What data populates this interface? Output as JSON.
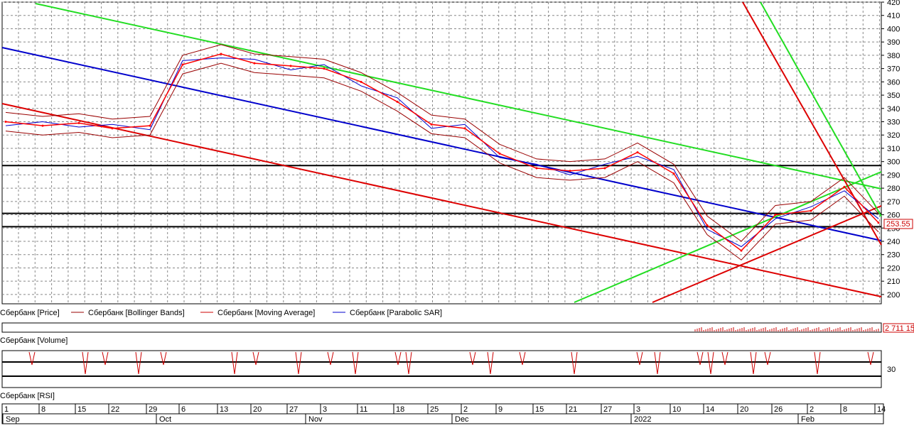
{
  "price_chart": {
    "y_ticks": [
      200,
      210,
      220,
      230,
      240,
      250,
      260,
      270,
      280,
      290,
      300,
      310,
      320,
      330,
      340,
      350,
      360,
      370,
      380,
      390,
      400,
      410,
      420
    ],
    "y_range": [
      193,
      420
    ],
    "last_price_label": "253.55",
    "horizontal_lines": [
      297,
      261,
      251
    ],
    "legend": [
      {
        "label": "Сбербанк [Price]",
        "color": "#ff0000"
      },
      {
        "label": "Сбербанк [Bollinger Bands]",
        "color": "#990000"
      },
      {
        "label": "Сбербанк [Moving Average]",
        "color": "#cc0000"
      },
      {
        "label": "Сбербанк [Parabolic SAR]",
        "color": "#0000cc"
      }
    ]
  },
  "volume_panel": {
    "label": "Сбербанк [Volume]",
    "value_label": "2 711 15"
  },
  "rsi_panel": {
    "label": "Сбербанк [RSI]",
    "level_label": "30"
  },
  "time_axis": {
    "day_labels": [
      "1",
      "8",
      "15",
      "22",
      "29",
      "6",
      "13",
      "20",
      "27",
      "3",
      "11",
      "18",
      "25",
      "2",
      "9",
      "15",
      "21",
      "27",
      "3",
      "10",
      "14",
      "20",
      "26",
      "2",
      "8",
      "14"
    ],
    "month_labels": [
      "Sep",
      "Oct",
      "Nov",
      "Dec",
      "2022",
      "Feb"
    ]
  },
  "chart_data": {
    "type": "line",
    "title": "",
    "x_dates": [
      "Sep 1",
      "Sep 8",
      "Sep 15",
      "Sep 22",
      "Sep 29",
      "Oct 6",
      "Oct 13",
      "Oct 20",
      "Oct 27",
      "Nov 3",
      "Nov 11",
      "Nov 18",
      "Nov 25",
      "Dec 2",
      "Dec 9",
      "Dec 15",
      "Dec 21",
      "Dec 27",
      "Jan 3",
      "Jan 10",
      "Jan 14",
      "Jan 20",
      "Jan 26",
      "Feb 2",
      "Feb 8",
      "Feb 14"
    ],
    "series": [
      {
        "name": "Сбербанк [Price]",
        "values": [
          330,
          327,
          329,
          325,
          327,
          373,
          381,
          374,
          372,
          370,
          360,
          345,
          328,
          325,
          306,
          295,
          293,
          295,
          307,
          291,
          252,
          233,
          260,
          263,
          281,
          254
        ]
      }
    ],
    "ylim": [
      193,
      420
    ],
    "grid": true,
    "legend_position": "bottom"
  }
}
